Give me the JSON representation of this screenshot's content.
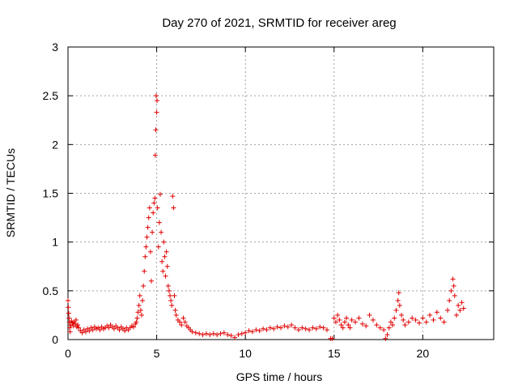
{
  "chart_data": {
    "type": "scatter",
    "title": "Day 270 of 2021, SRMTID for receiver areg",
    "xlabel": "GPS time / hours",
    "ylabel": "SRMTID / TECUs",
    "xlim": [
      0,
      24
    ],
    "ylim": [
      0,
      3
    ],
    "xticks": [
      0,
      5,
      10,
      15,
      20
    ],
    "yticks": [
      0,
      0.5,
      1,
      1.5,
      2,
      2.5,
      3
    ],
    "xtick_labels": [
      "0",
      "5",
      "10",
      "15",
      "20"
    ],
    "ytick_labels": [
      "0",
      "0.5",
      "1",
      "1.5",
      "2",
      "2.5",
      "3"
    ],
    "grid": true,
    "marker": "+",
    "marker_color": "#e00000",
    "series": [
      {
        "name": "SRMTID",
        "points": [
          [
            0.0,
            0.4
          ],
          [
            0.02,
            0.33
          ],
          [
            0.04,
            0.27
          ],
          [
            0.06,
            0.22
          ],
          [
            0.08,
            0.18
          ],
          [
            0.1,
            0.12
          ],
          [
            0.12,
            0.08
          ],
          [
            0.15,
            0.15
          ],
          [
            0.2,
            0.19
          ],
          [
            0.25,
            0.17
          ],
          [
            0.3,
            0.14
          ],
          [
            0.35,
            0.18
          ],
          [
            0.4,
            0.16
          ],
          [
            0.45,
            0.2
          ],
          [
            0.5,
            0.13
          ],
          [
            0.55,
            0.15
          ],
          [
            0.6,
            0.12
          ],
          [
            0.7,
            0.09
          ],
          [
            0.8,
            0.07
          ],
          [
            0.9,
            0.1
          ],
          [
            1.0,
            0.08
          ],
          [
            1.1,
            0.11
          ],
          [
            1.2,
            0.09
          ],
          [
            1.3,
            0.12
          ],
          [
            1.4,
            0.1
          ],
          [
            1.5,
            0.13
          ],
          [
            1.6,
            0.11
          ],
          [
            1.7,
            0.12
          ],
          [
            1.8,
            0.1
          ],
          [
            1.9,
            0.13
          ],
          [
            2.0,
            0.11
          ],
          [
            2.1,
            0.12
          ],
          [
            2.2,
            0.14
          ],
          [
            2.3,
            0.12
          ],
          [
            2.4,
            0.15
          ],
          [
            2.5,
            0.13
          ],
          [
            2.6,
            0.11
          ],
          [
            2.7,
            0.14
          ],
          [
            2.8,
            0.12
          ],
          [
            2.9,
            0.1
          ],
          [
            3.0,
            0.13
          ],
          [
            3.1,
            0.11
          ],
          [
            3.2,
            0.09
          ],
          [
            3.3,
            0.12
          ],
          [
            3.4,
            0.1
          ],
          [
            3.5,
            0.12
          ],
          [
            3.6,
            0.14
          ],
          [
            3.7,
            0.13
          ],
          [
            3.8,
            0.16
          ],
          [
            3.85,
            0.18
          ],
          [
            3.9,
            0.22
          ],
          [
            3.95,
            0.28
          ],
          [
            4.0,
            0.35
          ],
          [
            4.05,
            0.45
          ],
          [
            4.1,
            0.3
          ],
          [
            4.15,
            0.25
          ],
          [
            4.2,
            0.4
          ],
          [
            4.25,
            0.55
          ],
          [
            4.3,
            0.7
          ],
          [
            4.35,
            0.85
          ],
          [
            4.4,
            0.95
          ],
          [
            4.45,
            1.05
          ],
          [
            4.5,
            1.15
          ],
          [
            4.55,
            1.25
          ],
          [
            4.6,
            1.35
          ],
          [
            4.65,
            0.9
          ],
          [
            4.7,
            0.6
          ],
          [
            4.75,
            1.1
          ],
          [
            4.8,
            1.3
          ],
          [
            4.85,
            1.4
          ],
          [
            4.9,
            1.45
          ],
          [
            4.92,
            1.89
          ],
          [
            4.95,
            2.15
          ],
          [
            4.97,
            2.5
          ],
          [
            5.0,
            2.33
          ],
          [
            5.02,
            2.45
          ],
          [
            5.05,
            1.35
          ],
          [
            5.1,
            0.95
          ],
          [
            5.15,
            1.2
          ],
          [
            5.2,
            1.49
          ],
          [
            5.25,
            1.1
          ],
          [
            5.3,
            0.8
          ],
          [
            5.35,
            0.7
          ],
          [
            5.4,
            1.0
          ],
          [
            5.45,
            0.85
          ],
          [
            5.5,
            0.65
          ],
          [
            5.55,
            0.9
          ],
          [
            5.6,
            0.75
          ],
          [
            5.65,
            0.55
          ],
          [
            5.7,
            0.5
          ],
          [
            5.75,
            0.45
          ],
          [
            5.8,
            0.4
          ],
          [
            5.85,
            0.35
          ],
          [
            5.9,
            1.47
          ],
          [
            5.95,
            1.35
          ],
          [
            6.0,
            0.45
          ],
          [
            6.05,
            0.3
          ],
          [
            6.1,
            0.25
          ],
          [
            6.2,
            0.2
          ],
          [
            6.3,
            0.18
          ],
          [
            6.4,
            0.15
          ],
          [
            6.5,
            0.22
          ],
          [
            6.6,
            0.18
          ],
          [
            6.7,
            0.14
          ],
          [
            6.8,
            0.12
          ],
          [
            6.9,
            0.1
          ],
          [
            7.0,
            0.08
          ],
          [
            7.2,
            0.07
          ],
          [
            7.4,
            0.06
          ],
          [
            7.6,
            0.05
          ],
          [
            7.8,
            0.06
          ],
          [
            8.0,
            0.05
          ],
          [
            8.2,
            0.06
          ],
          [
            8.4,
            0.05
          ],
          [
            8.6,
            0.06
          ],
          [
            8.8,
            0.07
          ],
          [
            9.0,
            0.05
          ],
          [
            9.2,
            0.04
          ],
          [
            9.4,
            0.02
          ],
          [
            9.6,
            0.05
          ],
          [
            9.8,
            0.06
          ],
          [
            10.0,
            0.07
          ],
          [
            10.2,
            0.09
          ],
          [
            10.4,
            0.08
          ],
          [
            10.6,
            0.1
          ],
          [
            10.8,
            0.09
          ],
          [
            11.0,
            0.11
          ],
          [
            11.2,
            0.1
          ],
          [
            11.4,
            0.12
          ],
          [
            11.6,
            0.11
          ],
          [
            11.8,
            0.13
          ],
          [
            12.0,
            0.12
          ],
          [
            12.2,
            0.14
          ],
          [
            12.4,
            0.13
          ],
          [
            12.6,
            0.15
          ],
          [
            12.8,
            0.12
          ],
          [
            13.0,
            0.1
          ],
          [
            13.2,
            0.12
          ],
          [
            13.4,
            0.11
          ],
          [
            13.6,
            0.1
          ],
          [
            13.8,
            0.12
          ],
          [
            14.0,
            0.11
          ],
          [
            14.2,
            0.13
          ],
          [
            14.4,
            0.12
          ],
          [
            14.6,
            0.1
          ],
          [
            14.8,
            0.01
          ],
          [
            14.9,
            0.01
          ],
          [
            15.0,
            0.22
          ],
          [
            15.1,
            0.18
          ],
          [
            15.2,
            0.25
          ],
          [
            15.3,
            0.2
          ],
          [
            15.4,
            0.15
          ],
          [
            15.5,
            0.12
          ],
          [
            15.6,
            0.18
          ],
          [
            15.7,
            0.22
          ],
          [
            15.8,
            0.15
          ],
          [
            15.9,
            0.12
          ],
          [
            16.0,
            0.2
          ],
          [
            16.2,
            0.18
          ],
          [
            16.4,
            0.22
          ],
          [
            16.6,
            0.16
          ],
          [
            16.8,
            0.14
          ],
          [
            17.0,
            0.25
          ],
          [
            17.2,
            0.2
          ],
          [
            17.4,
            0.15
          ],
          [
            17.6,
            0.12
          ],
          [
            17.8,
            0.1
          ],
          [
            17.9,
            0.01
          ],
          [
            18.0,
            0.05
          ],
          [
            18.1,
            0.12
          ],
          [
            18.2,
            0.18
          ],
          [
            18.3,
            0.15
          ],
          [
            18.4,
            0.22
          ],
          [
            18.5,
            0.3
          ],
          [
            18.6,
            0.4
          ],
          [
            18.65,
            0.48
          ],
          [
            18.7,
            0.35
          ],
          [
            18.8,
            0.25
          ],
          [
            18.9,
            0.2
          ],
          [
            19.0,
            0.15
          ],
          [
            19.2,
            0.18
          ],
          [
            19.4,
            0.22
          ],
          [
            19.6,
            0.2
          ],
          [
            19.8,
            0.17
          ],
          [
            20.0,
            0.22
          ],
          [
            20.2,
            0.18
          ],
          [
            20.4,
            0.25
          ],
          [
            20.6,
            0.2
          ],
          [
            20.8,
            0.28
          ],
          [
            21.0,
            0.22
          ],
          [
            21.2,
            0.18
          ],
          [
            21.4,
            0.3
          ],
          [
            21.5,
            0.4
          ],
          [
            21.6,
            0.5
          ],
          [
            21.7,
            0.62
          ],
          [
            21.75,
            0.55
          ],
          [
            21.8,
            0.45
          ],
          [
            21.9,
            0.25
          ],
          [
            22.0,
            0.35
          ],
          [
            22.1,
            0.3
          ],
          [
            22.2,
            0.38
          ],
          [
            22.3,
            0.32
          ]
        ]
      }
    ]
  }
}
